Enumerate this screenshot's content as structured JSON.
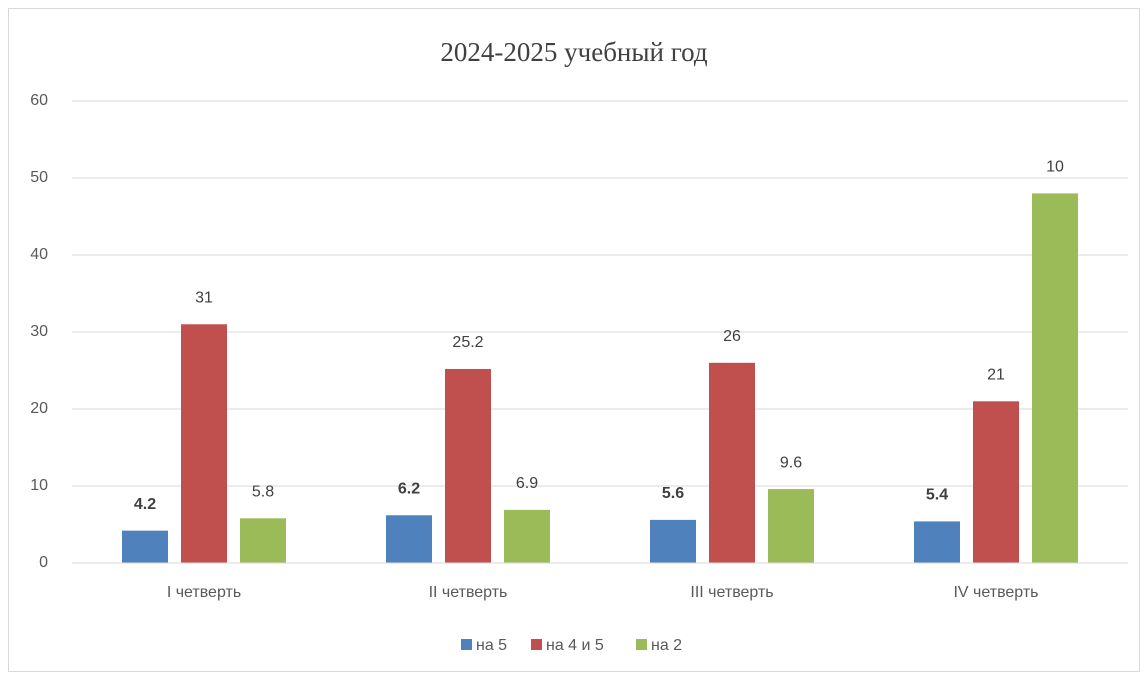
{
  "chart_data": {
    "type": "bar",
    "title": "2024-2025 учебный год",
    "categories": [
      "I четверть",
      "II четверть",
      "III четверть",
      "IV четверть"
    ],
    "series": [
      {
        "name": "на 5",
        "color": "#4f81bd",
        "values": [
          4.2,
          6.2,
          5.6,
          5.4
        ],
        "label_bold": true
      },
      {
        "name": "на 4 и 5",
        "color": "#c0504d",
        "values": [
          31,
          25.2,
          26,
          21
        ]
      },
      {
        "name": "на 2",
        "color": "#9bbb59",
        "values": [
          5.8,
          6.9,
          9.6,
          48
        ]
      }
    ],
    "annotations": [
      {
        "text": "10"
      }
    ],
    "ylim": [
      0,
      60
    ],
    "yticks": [
      0,
      10,
      20,
      30,
      40,
      50,
      60
    ],
    "grid": true,
    "legend": "bottom"
  }
}
